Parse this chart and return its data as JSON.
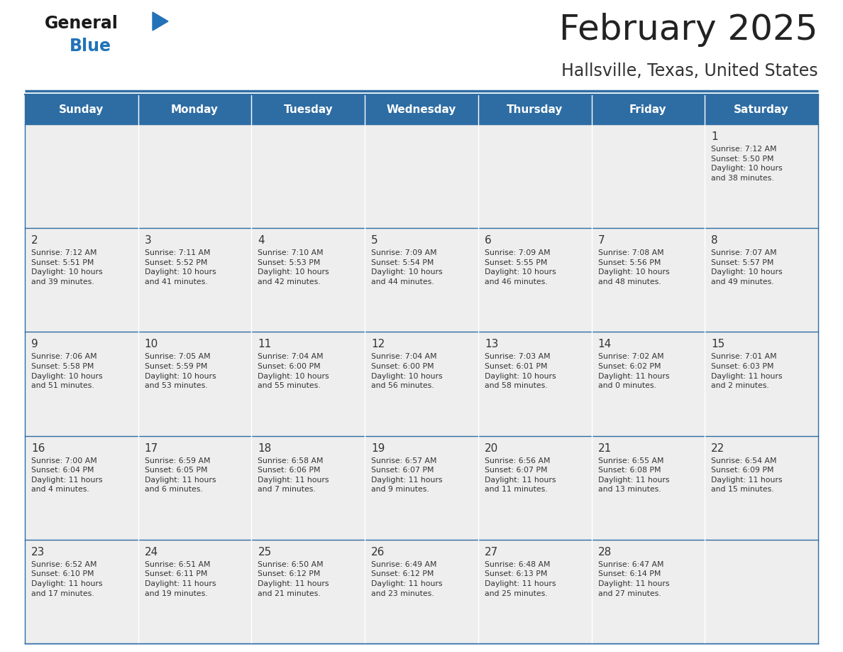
{
  "title": "February 2025",
  "subtitle": "Hallsville, Texas, United States",
  "header_color": "#2E6DA4",
  "header_text_color": "#FFFFFF",
  "cell_bg_color": "#EEEEEE",
  "border_color": "#2E6DA4",
  "cell_border_color": "#AAAAAA",
  "text_color": "#333333",
  "days_of_week": [
    "Sunday",
    "Monday",
    "Tuesday",
    "Wednesday",
    "Thursday",
    "Friday",
    "Saturday"
  ],
  "weeks": [
    [
      {
        "day": null,
        "info": null
      },
      {
        "day": null,
        "info": null
      },
      {
        "day": null,
        "info": null
      },
      {
        "day": null,
        "info": null
      },
      {
        "day": null,
        "info": null
      },
      {
        "day": null,
        "info": null
      },
      {
        "day": 1,
        "info": "Sunrise: 7:12 AM\nSunset: 5:50 PM\nDaylight: 10 hours\nand 38 minutes."
      }
    ],
    [
      {
        "day": 2,
        "info": "Sunrise: 7:12 AM\nSunset: 5:51 PM\nDaylight: 10 hours\nand 39 minutes."
      },
      {
        "day": 3,
        "info": "Sunrise: 7:11 AM\nSunset: 5:52 PM\nDaylight: 10 hours\nand 41 minutes."
      },
      {
        "day": 4,
        "info": "Sunrise: 7:10 AM\nSunset: 5:53 PM\nDaylight: 10 hours\nand 42 minutes."
      },
      {
        "day": 5,
        "info": "Sunrise: 7:09 AM\nSunset: 5:54 PM\nDaylight: 10 hours\nand 44 minutes."
      },
      {
        "day": 6,
        "info": "Sunrise: 7:09 AM\nSunset: 5:55 PM\nDaylight: 10 hours\nand 46 minutes."
      },
      {
        "day": 7,
        "info": "Sunrise: 7:08 AM\nSunset: 5:56 PM\nDaylight: 10 hours\nand 48 minutes."
      },
      {
        "day": 8,
        "info": "Sunrise: 7:07 AM\nSunset: 5:57 PM\nDaylight: 10 hours\nand 49 minutes."
      }
    ],
    [
      {
        "day": 9,
        "info": "Sunrise: 7:06 AM\nSunset: 5:58 PM\nDaylight: 10 hours\nand 51 minutes."
      },
      {
        "day": 10,
        "info": "Sunrise: 7:05 AM\nSunset: 5:59 PM\nDaylight: 10 hours\nand 53 minutes."
      },
      {
        "day": 11,
        "info": "Sunrise: 7:04 AM\nSunset: 6:00 PM\nDaylight: 10 hours\nand 55 minutes."
      },
      {
        "day": 12,
        "info": "Sunrise: 7:04 AM\nSunset: 6:00 PM\nDaylight: 10 hours\nand 56 minutes."
      },
      {
        "day": 13,
        "info": "Sunrise: 7:03 AM\nSunset: 6:01 PM\nDaylight: 10 hours\nand 58 minutes."
      },
      {
        "day": 14,
        "info": "Sunrise: 7:02 AM\nSunset: 6:02 PM\nDaylight: 11 hours\nand 0 minutes."
      },
      {
        "day": 15,
        "info": "Sunrise: 7:01 AM\nSunset: 6:03 PM\nDaylight: 11 hours\nand 2 minutes."
      }
    ],
    [
      {
        "day": 16,
        "info": "Sunrise: 7:00 AM\nSunset: 6:04 PM\nDaylight: 11 hours\nand 4 minutes."
      },
      {
        "day": 17,
        "info": "Sunrise: 6:59 AM\nSunset: 6:05 PM\nDaylight: 11 hours\nand 6 minutes."
      },
      {
        "day": 18,
        "info": "Sunrise: 6:58 AM\nSunset: 6:06 PM\nDaylight: 11 hours\nand 7 minutes."
      },
      {
        "day": 19,
        "info": "Sunrise: 6:57 AM\nSunset: 6:07 PM\nDaylight: 11 hours\nand 9 minutes."
      },
      {
        "day": 20,
        "info": "Sunrise: 6:56 AM\nSunset: 6:07 PM\nDaylight: 11 hours\nand 11 minutes."
      },
      {
        "day": 21,
        "info": "Sunrise: 6:55 AM\nSunset: 6:08 PM\nDaylight: 11 hours\nand 13 minutes."
      },
      {
        "day": 22,
        "info": "Sunrise: 6:54 AM\nSunset: 6:09 PM\nDaylight: 11 hours\nand 15 minutes."
      }
    ],
    [
      {
        "day": 23,
        "info": "Sunrise: 6:52 AM\nSunset: 6:10 PM\nDaylight: 11 hours\nand 17 minutes."
      },
      {
        "day": 24,
        "info": "Sunrise: 6:51 AM\nSunset: 6:11 PM\nDaylight: 11 hours\nand 19 minutes."
      },
      {
        "day": 25,
        "info": "Sunrise: 6:50 AM\nSunset: 6:12 PM\nDaylight: 11 hours\nand 21 minutes."
      },
      {
        "day": 26,
        "info": "Sunrise: 6:49 AM\nSunset: 6:12 PM\nDaylight: 11 hours\nand 23 minutes."
      },
      {
        "day": 27,
        "info": "Sunrise: 6:48 AM\nSunset: 6:13 PM\nDaylight: 11 hours\nand 25 minutes."
      },
      {
        "day": 28,
        "info": "Sunrise: 6:47 AM\nSunset: 6:14 PM\nDaylight: 11 hours\nand 27 minutes."
      },
      {
        "day": null,
        "info": null
      }
    ]
  ],
  "logo_color_general": "#1a1a1a",
  "logo_color_blue": "#2272B8",
  "logo_color_triangle": "#2272B8",
  "fig_width": 11.88,
  "fig_height": 9.18,
  "dpi": 100
}
